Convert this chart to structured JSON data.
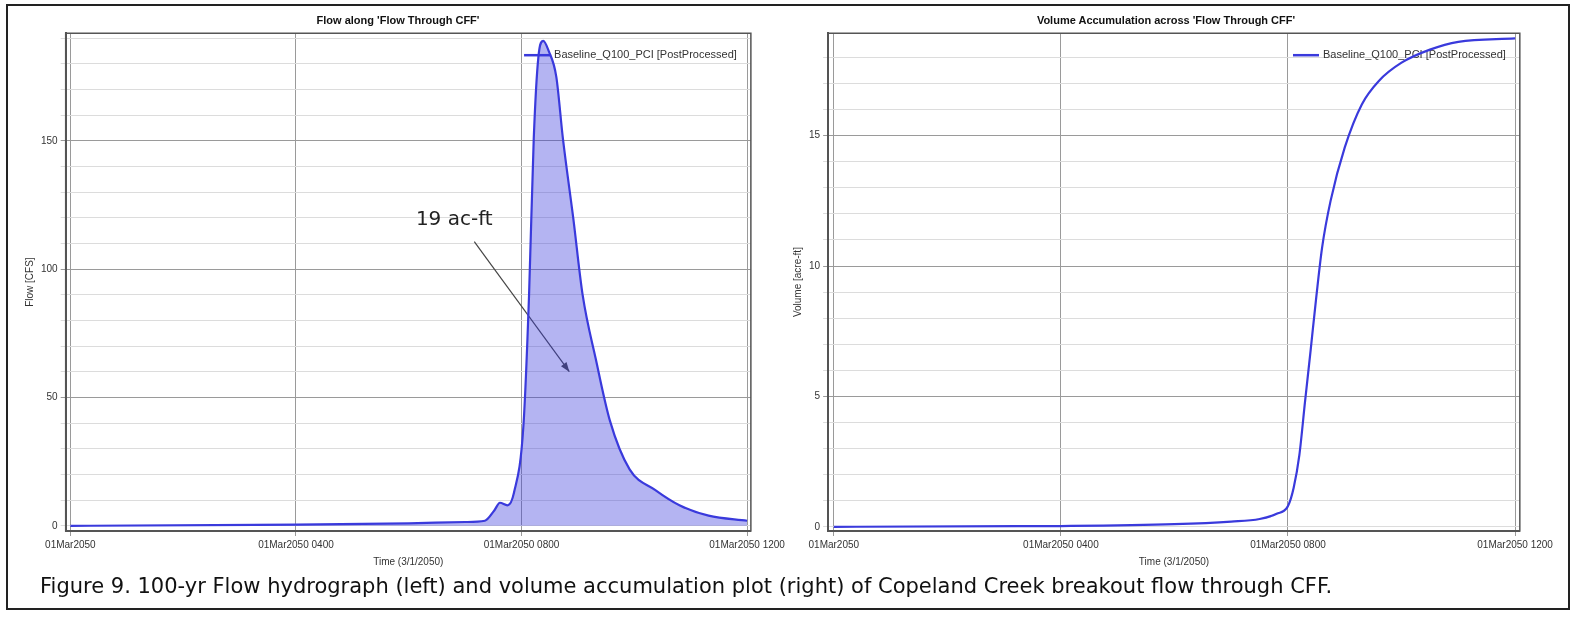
{
  "chart_data": [
    {
      "type": "area",
      "title": "Flow along 'Flow Through CFF'",
      "xlabel": "Time (3/1/2050)",
      "ylabel": "Flow [CFS]",
      "x": [
        "2050-03-01T00:00",
        "2050-03-01T04:00",
        "2050-03-01T06:00",
        "2050-03-01T07:00",
        "2050-03-01T07:21",
        "2050-03-01T07:31",
        "2050-03-01T07:37",
        "2050-03-01T07:45",
        "2050-03-01T07:52",
        "2050-03-01T08:02",
        "2050-03-01T08:08",
        "2050-03-01T08:13",
        "2050-03-01T08:18",
        "2050-03-01T08:23",
        "2050-03-01T08:29",
        "2050-03-01T08:37",
        "2050-03-01T08:44",
        "2050-03-01T08:55",
        "2050-03-01T09:05",
        "2050-03-01T09:19",
        "2050-03-01T09:34",
        "2050-03-01T09:55",
        "2050-03-01T10:22",
        "2050-03-01T10:48",
        "2050-03-01T11:19",
        "2050-03-01T12:00"
      ],
      "series": [
        {
          "name": "Baseline_Q100_PCI [PostProcessed]",
          "color": "#3a3adc",
          "values": [
            0,
            0.5,
            1,
            1.5,
            2,
            6,
            9,
            8,
            13,
            39,
            90,
            151,
            183,
            189,
            185,
            175,
            151,
            120,
            90,
            65,
            41,
            22,
            14,
            8,
            4,
            2
          ]
        }
      ],
      "xlim": [
        "2050-02-28T23:55",
        "2050-03-01T12:04"
      ],
      "xticks": [
        {
          "value": "2050-03-01T00:00",
          "label": "01Mar2050"
        },
        {
          "value": "2050-03-01T04:00",
          "label": "01Mar2050 0400"
        },
        {
          "value": "2050-03-01T08:00",
          "label": "01Mar2050 0800"
        },
        {
          "value": "2050-03-01T12:00",
          "label": "01Mar2050 1200"
        }
      ],
      "ylim": [
        -2,
        192
      ],
      "yticks": [
        0,
        {
          "value": 10,
          "label": null
        },
        {
          "value": 20,
          "label": null
        },
        {
          "value": 30,
          "label": null
        },
        {
          "value": 40,
          "label": null
        },
        50,
        {
          "value": 60,
          "label": null
        },
        {
          "value": 70,
          "label": null
        },
        {
          "value": 80,
          "label": null
        },
        {
          "value": 90,
          "label": null
        },
        100,
        {
          "value": 110,
          "label": null
        },
        {
          "value": 120,
          "label": null
        },
        {
          "value": 130,
          "label": null
        },
        {
          "value": 140,
          "label": null
        },
        150,
        {
          "value": 160,
          "label": null
        },
        {
          "value": 170,
          "label": null
        },
        {
          "value": 180,
          "label": null
        },
        {
          "value": 190,
          "label": null
        }
      ],
      "grid": true,
      "legend": "top right",
      "annotations": [
        "19 ac-ft"
      ]
    },
    {
      "type": "line",
      "title": "Volume Accumulation across 'Flow Through CFF'",
      "xlabel": "Time (3/1/2050)",
      "ylabel": "Volume [acre-ft]",
      "x": [
        "2050-03-01T00:00",
        "2050-03-01T04:00",
        "2050-03-01T06:00",
        "2050-03-01T07:00",
        "2050-03-01T07:30",
        "2050-03-01T07:48",
        "2050-03-01T08:00",
        "2050-03-01T08:06",
        "2050-03-01T08:12",
        "2050-03-01T08:18",
        "2050-03-01T08:24",
        "2050-03-01T08:30",
        "2050-03-01T08:36",
        "2050-03-01T08:45",
        "2050-03-01T09:00",
        "2050-03-01T09:18",
        "2050-03-01T09:36",
        "2050-03-01T10:00",
        "2050-03-01T10:30",
        "2050-03-01T11:00",
        "2050-03-01T12:00"
      ],
      "series": [
        {
          "name": "Baseline_Q100_PCI [PostProcessed]",
          "color": "#3a3adc",
          "values": [
            0,
            0.03,
            0.1,
            0.2,
            0.3,
            0.5,
            0.8,
            1.5,
            2.75,
            4.8,
            6.8,
            8.85,
            10.7,
            12.5,
            14.55,
            16.2,
            17.1,
            17.8,
            18.3,
            18.6,
            18.73
          ]
        }
      ],
      "xlim": [
        "2050-02-28T23:54",
        "2050-03-01T12:05"
      ],
      "xticks": [
        {
          "value": "2050-03-01T00:00",
          "label": "01Mar2050"
        },
        {
          "value": "2050-03-01T04:00",
          "label": "01Mar2050 0400"
        },
        {
          "value": "2050-03-01T08:00",
          "label": "01Mar2050 0800"
        },
        {
          "value": "2050-03-01T12:00",
          "label": "01Mar2050 1200"
        }
      ],
      "ylim": [
        -0.16,
        18.93
      ],
      "yticks": [
        0,
        {
          "value": 1,
          "label": null
        },
        {
          "value": 2,
          "label": null
        },
        {
          "value": 3,
          "label": null
        },
        {
          "value": 4,
          "label": null
        },
        5,
        {
          "value": 6,
          "label": null
        },
        {
          "value": 7,
          "label": null
        },
        {
          "value": 8,
          "label": null
        },
        {
          "value": 9,
          "label": null
        },
        10,
        {
          "value": 11,
          "label": null
        },
        {
          "value": 12,
          "label": null
        },
        {
          "value": 13,
          "label": null
        },
        {
          "value": 14,
          "label": null
        },
        15,
        {
          "value": 16,
          "label": null
        },
        {
          "value": 17,
          "label": null
        },
        {
          "value": 18,
          "label": null
        }
      ],
      "grid": true,
      "legend": "top right",
      "annotations": [
        "Figure 9. 100-yr Flow hydrograph (left) and volume accumulation plot (right) of Copeland Creek breakout flow through CFF."
      ]
    }
  ]
}
